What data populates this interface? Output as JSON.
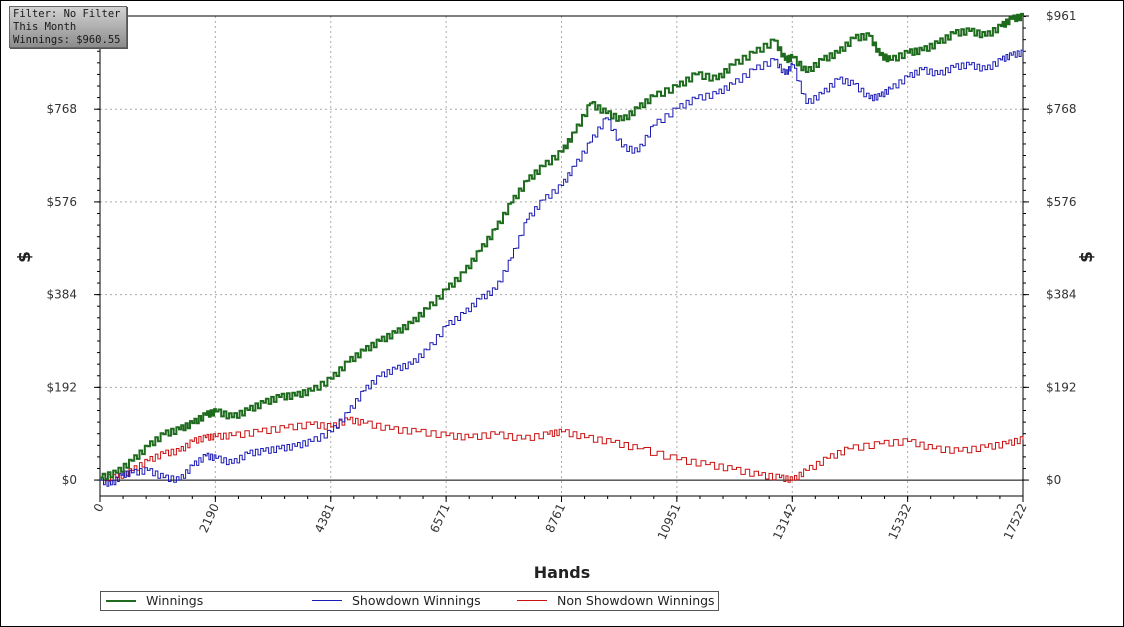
{
  "filter_box": {
    "line1": "Filter: No Filter",
    "line2": "This Month",
    "line3": "Winnings: $960.55"
  },
  "chart_data": {
    "type": "line",
    "xlabel": "Hands",
    "ylabel": "$",
    "ylabel_right": "$",
    "xlim": [
      0,
      17522
    ],
    "ylim": [
      -33,
      961
    ],
    "x_ticks": [
      "0",
      "2190",
      "4381",
      "6571",
      "8761",
      "10951",
      "13142",
      "15332",
      "17522"
    ],
    "y_ticks": [
      "$0",
      "$192",
      "$384",
      "$576",
      "$768",
      "$961"
    ],
    "grid": true,
    "legend_position": "bottom",
    "series": [
      {
        "name": "Winnings",
        "color": "#1e6b1e",
        "x": [
          0,
          300,
          600,
          900,
          1200,
          1500,
          1750,
          2000,
          2200,
          2500,
          2800,
          3100,
          3400,
          3700,
          4000,
          4381,
          4700,
          5000,
          5300,
          5600,
          5900,
          6200,
          6571,
          6900,
          7200,
          7500,
          7800,
          8100,
          8400,
          8761,
          9000,
          9300,
          9600,
          9900,
          10200,
          10500,
          10951,
          11300,
          11700,
          12000,
          12400,
          12800,
          13000,
          13142,
          13400,
          13700,
          14000,
          14300,
          14600,
          14800,
          15000,
          15332,
          15600,
          15900,
          16200,
          16500,
          16800,
          17100,
          17300,
          17522
        ],
        "y": [
          5,
          15,
          40,
          70,
          95,
          105,
          118,
          135,
          142,
          130,
          145,
          160,
          172,
          175,
          185,
          210,
          245,
          268,
          288,
          305,
          325,
          355,
          395,
          430,
          475,
          520,
          575,
          620,
          650,
          680,
          720,
          780,
          760,
          745,
          770,
          795,
          815,
          840,
          830,
          860,
          885,
          910,
          870,
          875,
          845,
          870,
          885,
          915,
          920,
          880,
          870,
          885,
          890,
          905,
          925,
          930,
          920,
          940,
          955,
          960
        ]
      },
      {
        "name": "Showdown Winnings",
        "color": "#1a1ab5",
        "x": [
          0,
          200,
          400,
          600,
          900,
          1200,
          1500,
          1750,
          2000,
          2200,
          2500,
          2800,
          3100,
          3400,
          3700,
          4000,
          4381,
          4700,
          5000,
          5300,
          5600,
          5900,
          6200,
          6571,
          6900,
          7200,
          7500,
          7800,
          8100,
          8400,
          8761,
          9000,
          9300,
          9600,
          9900,
          10200,
          10500,
          10951,
          11300,
          11700,
          12000,
          12400,
          12800,
          13000,
          13142,
          13400,
          13700,
          14000,
          14300,
          14600,
          14800,
          15000,
          15332,
          15600,
          15900,
          16200,
          16500,
          16800,
          17100,
          17300,
          17522
        ],
        "y": [
          0,
          -10,
          10,
          15,
          20,
          5,
          0,
          30,
          50,
          45,
          35,
          55,
          60,
          65,
          70,
          80,
          100,
          140,
          185,
          215,
          230,
          240,
          270,
          320,
          345,
          375,
          395,
          460,
          540,
          580,
          610,
          650,
          700,
          750,
          690,
          680,
          735,
          770,
          790,
          800,
          820,
          850,
          870,
          840,
          860,
          780,
          800,
          830,
          820,
          790,
          795,
          810,
          835,
          850,
          840,
          855,
          860,
          850,
          870,
          880,
          885
        ]
      },
      {
        "name": "Non Showdown Winnings",
        "color": "#cc1111",
        "x": [
          0,
          300,
          600,
          900,
          1200,
          1500,
          1750,
          2000,
          2190,
          2500,
          3000,
          3500,
          4000,
          4381,
          4700,
          5000,
          5500,
          6000,
          6571,
          7000,
          7500,
          8000,
          8500,
          8761,
          9200,
          9700,
          10200,
          10951,
          11500,
          12000,
          12500,
          12900,
          13142,
          13400,
          13800,
          14200,
          14800,
          15332,
          15800,
          16300,
          16800,
          17200,
          17522
        ],
        "y": [
          5,
          5,
          20,
          40,
          55,
          60,
          80,
          88,
          90,
          92,
          100,
          108,
          115,
          110,
          125,
          118,
          105,
          100,
          92,
          88,
          95,
          85,
          95,
          100,
          88,
          78,
          65,
          42,
          32,
          22,
          10,
          5,
          0,
          20,
          45,
          65,
          75,
          80,
          65,
          60,
          68,
          75,
          85
        ]
      }
    ]
  }
}
